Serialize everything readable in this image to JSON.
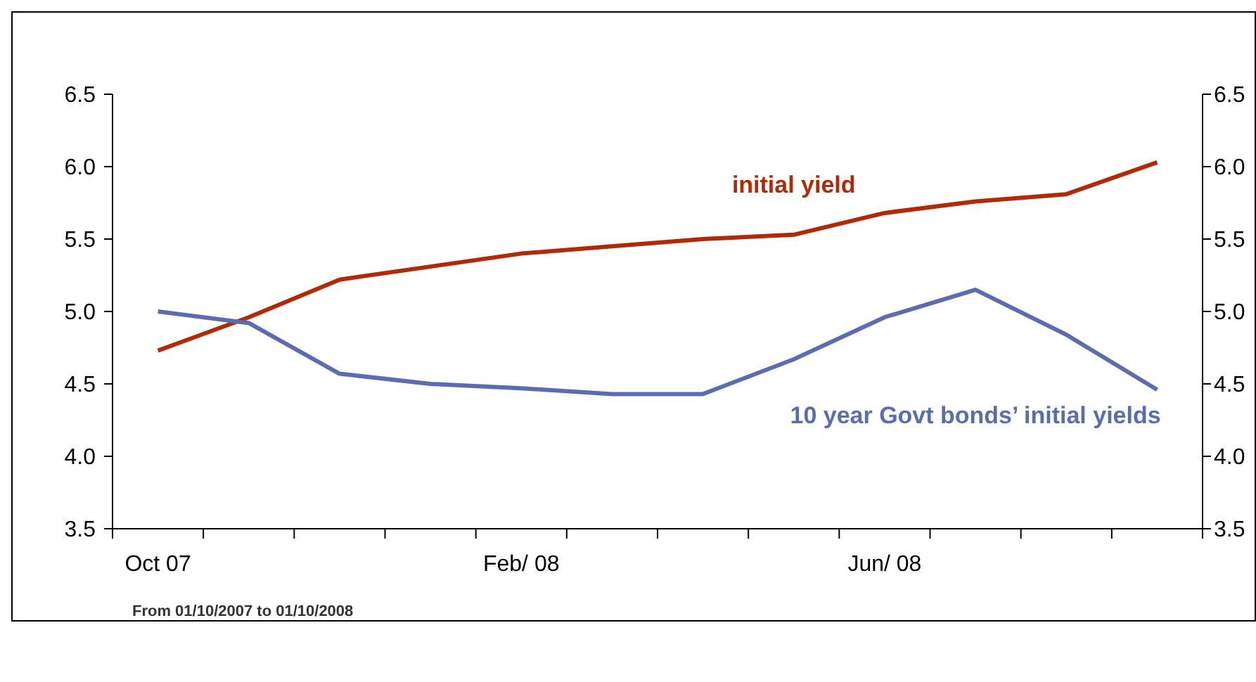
{
  "chart_data": {
    "type": "line",
    "categories": [
      "Oct 07",
      null,
      null,
      null,
      "Feb/ 08",
      null,
      null,
      null,
      "Jun/ 08",
      null,
      null,
      null
    ],
    "series": [
      {
        "name": "initial yield",
        "color": "#b22a05",
        "values": [
          4.73,
          4.96,
          5.22,
          5.31,
          5.4,
          5.45,
          5.5,
          5.53,
          5.68,
          5.76,
          5.81,
          6.03
        ]
      },
      {
        "name": "10 year Govt bonds’ initial yields",
        "color": "#5b6db0",
        "values": [
          5.0,
          4.92,
          4.57,
          4.5,
          4.47,
          4.43,
          4.43,
          4.67,
          4.96,
          5.15,
          4.84,
          4.46
        ]
      }
    ],
    "ylim": [
      3.5,
      6.5
    ],
    "yticks": [
      {
        "value": 3.5,
        "label": "3.5"
      },
      {
        "value": 4,
        "label": "4.0"
      },
      {
        "value": 4.5,
        "label": "4.5"
      },
      {
        "value": 5,
        "label": "5.0"
      },
      {
        "value": 5.5,
        "label": "5.5"
      },
      {
        "value": 6,
        "label": "6.0"
      },
      {
        "value": 6.5,
        "label": "6.5"
      }
    ],
    "y2lim": [
      3.5,
      6.5
    ],
    "y2ticks": [
      {
        "value": 3.5,
        "label": "3.5"
      },
      {
        "value": 4,
        "label": "4.0"
      },
      {
        "value": 4.5,
        "label": "4.5"
      },
      {
        "value": 5,
        "label": "5.0"
      },
      {
        "value": 5.5,
        "label": "5.5"
      },
      {
        "value": 6,
        "label": "6.0"
      },
      {
        "value": 6.5,
        "label": "6.5"
      }
    ],
    "grid": false,
    "legend": false,
    "marker": "none",
    "line_style": "solid",
    "annotations": [
      "From 01/10/2007 to 01/10/2008"
    ]
  }
}
